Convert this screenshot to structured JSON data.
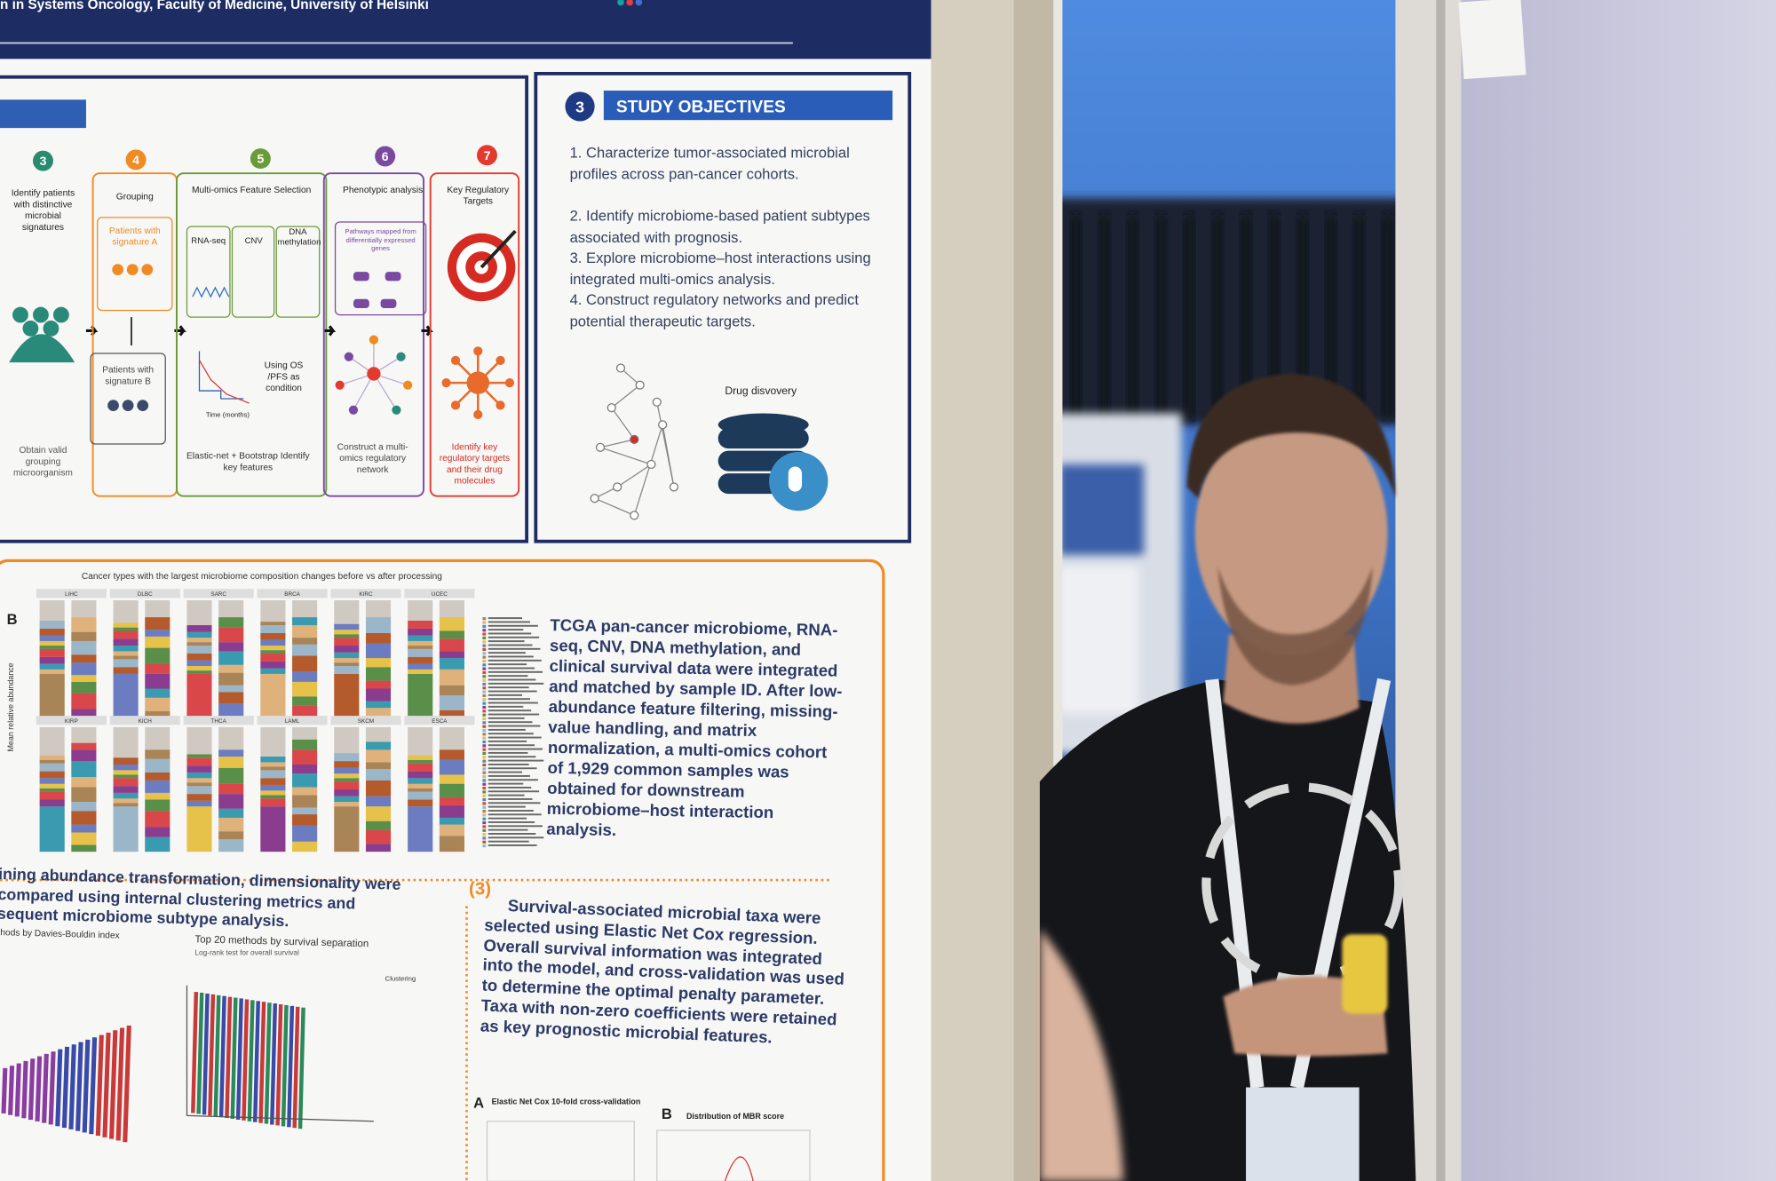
{
  "header": {
    "affiliation": "n in Systems Oncology, Faculty of Medicine, University of Helsinki"
  },
  "workflow": {
    "steps": [
      {
        "number": "3",
        "title": "Identify patients with distinctive microbial signatures",
        "note": "Obtain valid grouping microorganism"
      },
      {
        "number": "4",
        "title": "Grouping",
        "group_a": "Patients with signature A",
        "group_b": "Patients with signature B"
      },
      {
        "number": "5",
        "title": "Multi-omics Feature Selection",
        "omics": [
          "RNA-seq",
          "CNV",
          "DNA methylation"
        ],
        "condition": "Using OS /PFS as condition",
        "axis_label": "Time (months)",
        "note": "Elastic-net + Bootstrap Identify key features"
      },
      {
        "number": "6",
        "title": "Phenotypic analysis",
        "pathways": "Pathways mapped from differentially expressed genes",
        "note": "Construct a multi-omics regulatory network"
      },
      {
        "number": "7",
        "title": "Key Regulatory Targets",
        "note": "Identify key regulatory targets and their drug molecules"
      }
    ]
  },
  "objectives": {
    "number": "3",
    "title": "STUDY OBJECTIVES",
    "items": [
      "1. Characterize tumor-associated microbial profiles across pan-cancer cohorts.",
      "2. Identify microbiome-based patient subtypes associated with prognosis.",
      "3. Explore microbiome–host interactions using integrated multi-omics analysis.",
      "4. Construct regulatory networks and predict potential therapeutic targets."
    ],
    "icon_label": "Drug disvovery"
  },
  "composition": {
    "title": "Cancer types with the largest microbiome composition changes before vs after processing",
    "panel": "B",
    "y_label": "Mean relative abundance",
    "cancers": [
      "LIHC",
      "DLBC",
      "SARC",
      "BRCA",
      "KIRC",
      "UCEC",
      "KIRP",
      "KICH",
      "THCA",
      "LAML",
      "SKCM",
      "ESCA"
    ],
    "text": "TCGA pan-cancer microbiome, RNA-seq, CNV, DNA methylation, and clinical survival data were integrated and matched by sample ID. After low-abundance feature filtering, missing-value handling, and matrix normalization, a multi-omics cohort of 1,929 common samples was obtained for downstream microbiome–host interaction analysis."
  },
  "clustering": {
    "text": "ining abundance transformation, dimensionality were compared using internal clustering metrics and sequent microbiome subtype analysis.",
    "chart_a": "thods by Davies-Bouldin index",
    "chart_b": "Top 20 methods by survival separation",
    "chart_b_sub": "Log-rank test for overall survival",
    "legend_title": "Clustering"
  },
  "survival": {
    "number": "(3)",
    "text": "Survival-associated microbial taxa were selected using Elastic Net Cox regression. Overall survival information was integrated into the model, and cross-validation was used to determine the optimal penalty parameter. Taxa with non-zero coefficients were retained as key prognostic microbial features.",
    "panel_a": "A",
    "panel_a_title": "Elastic Net Cox 10-fold cross-validation",
    "panel_b": "B",
    "panel_b_title": "Distribution of MBR score"
  }
}
